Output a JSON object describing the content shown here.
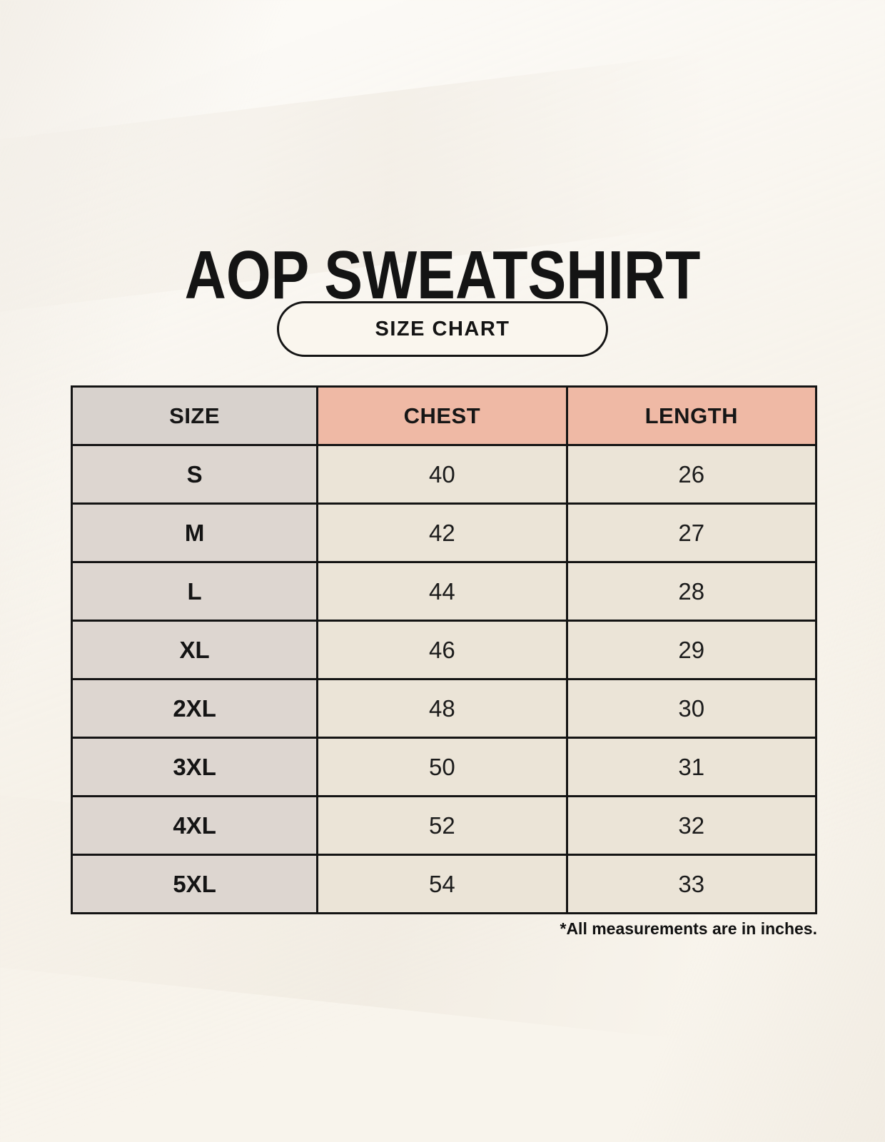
{
  "page": {
    "title": "AOP SWEATSHIRT",
    "badge_label": "SIZE CHART",
    "footnote": "*All measurements are in inches."
  },
  "chart_data": {
    "type": "table",
    "title": "AOP SWEATSHIRT",
    "subtitle": "SIZE CHART",
    "columns": [
      "SIZE",
      "CHEST",
      "LENGTH"
    ],
    "rows": [
      [
        "S",
        "40",
        "26"
      ],
      [
        "M",
        "42",
        "27"
      ],
      [
        "L",
        "44",
        "28"
      ],
      [
        "XL",
        "46",
        "29"
      ],
      [
        "2XL",
        "48",
        "30"
      ],
      [
        "3XL",
        "50",
        "31"
      ],
      [
        "4XL",
        "52",
        "32"
      ],
      [
        "5XL",
        "54",
        "33"
      ]
    ],
    "note": "*All measurements are in inches.",
    "units": "inches"
  },
  "colors": {
    "background": "#f8f4ec",
    "size_header_bg": "#d8d2cd",
    "measure_header_bg": "#efb9a5",
    "size_column_bg": "#ddd6d0",
    "value_cell_bg": "#ebe4d7",
    "border": "#141414",
    "text": "#161616"
  }
}
